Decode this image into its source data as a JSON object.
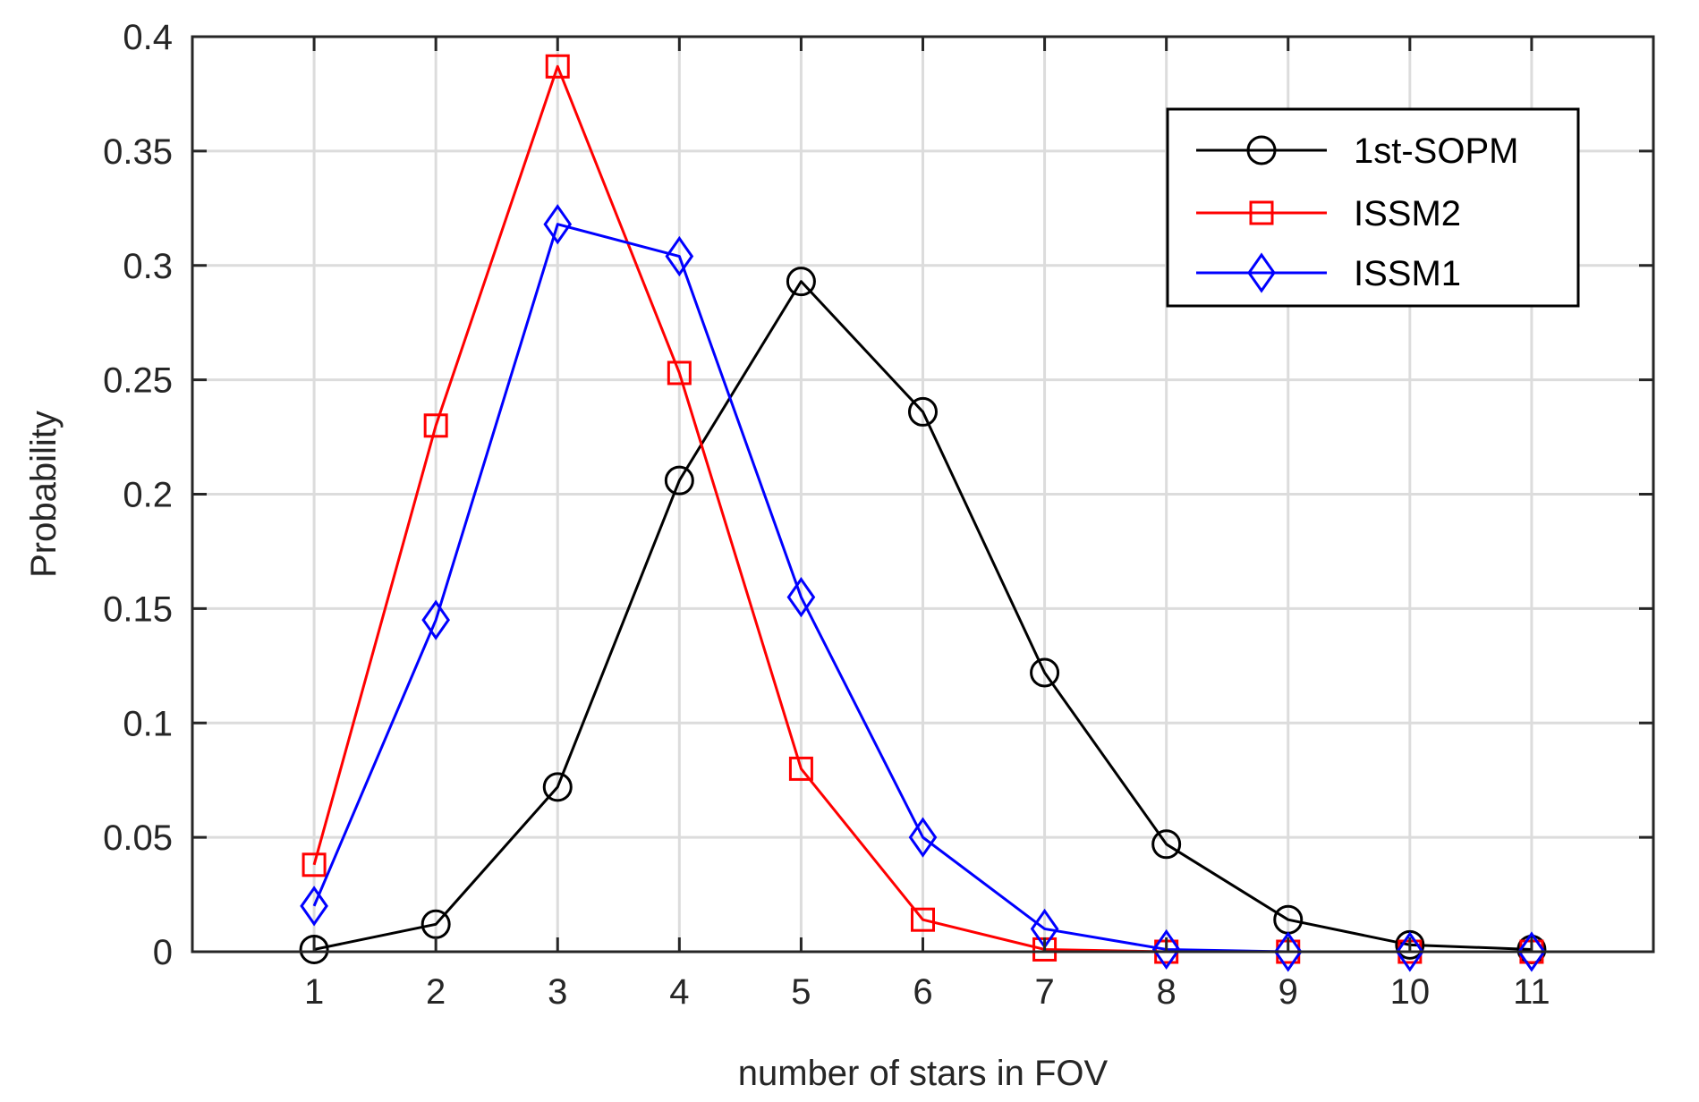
{
  "chart_data": {
    "type": "line",
    "title": "",
    "xlabel": "number of stars in FOV",
    "ylabel": "Probability",
    "xlim": [
      0,
      12
    ],
    "ylim": [
      0,
      0.4
    ],
    "xticks": [
      1,
      2,
      3,
      4,
      5,
      6,
      7,
      8,
      9,
      10,
      11
    ],
    "xtick_labels": [
      "1",
      "2",
      "3",
      "4",
      "5",
      "6",
      "7",
      "8",
      "9",
      "10",
      "11"
    ],
    "yticks": [
      0,
      0.05,
      0.1,
      0.15,
      0.2,
      0.25,
      0.3,
      0.35,
      0.4
    ],
    "ytick_labels": [
      "0",
      "0.05",
      "0.1",
      "0.15",
      "0.2",
      "0.25",
      "0.3",
      "0.35",
      "0.4"
    ],
    "grid": true,
    "legend_position": "top-right",
    "x": [
      1,
      2,
      3,
      4,
      5,
      6,
      7,
      8,
      9,
      10,
      11
    ],
    "series": [
      {
        "name": "1st-SOPM",
        "color": "#000000",
        "marker": "circle",
        "values": [
          0.001,
          0.012,
          0.072,
          0.206,
          0.293,
          0.236,
          0.122,
          0.047,
          0.014,
          0.003,
          0.001
        ]
      },
      {
        "name": "ISSM2",
        "color": "#ff0000",
        "marker": "square",
        "values": [
          0.038,
          0.23,
          0.387,
          0.253,
          0.08,
          0.014,
          0.001,
          0.0,
          0.0,
          0.0,
          0.0
        ]
      },
      {
        "name": "ISSM1",
        "color": "#0000ff",
        "marker": "diamond",
        "values": [
          0.02,
          0.145,
          0.318,
          0.304,
          0.155,
          0.05,
          0.01,
          0.001,
          0.0,
          0.0,
          0.0
        ]
      }
    ]
  }
}
